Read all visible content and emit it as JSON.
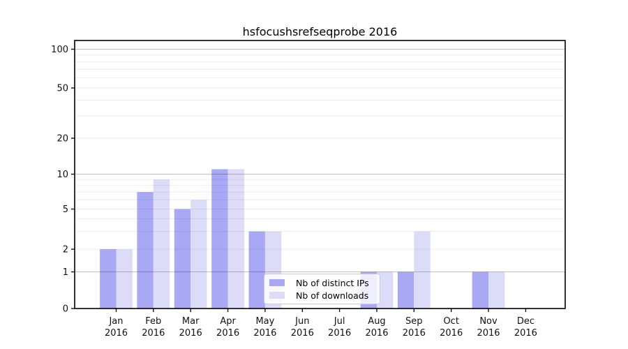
{
  "title": "hsfocushsrefseqprobe 2016",
  "legend": {
    "items": [
      {
        "label": "Nb of distinct IPs"
      },
      {
        "label": "Nb of downloads"
      }
    ]
  },
  "chart_data": {
    "type": "bar",
    "title": "hsfocushsrefseqprobe 2016",
    "categories": [
      "Jan",
      "Feb",
      "Mar",
      "Apr",
      "May",
      "Jun",
      "Jul",
      "Aug",
      "Sep",
      "Oct",
      "Nov",
      "Dec"
    ],
    "year": "2016",
    "series": [
      {
        "name": "Nb of distinct IPs",
        "color": "#a8a8f5",
        "values": [
          2,
          7,
          5,
          11,
          3,
          0,
          0,
          1,
          1,
          0,
          1,
          0
        ]
      },
      {
        "name": "Nb of downloads",
        "color": "#dcdcf8",
        "values": [
          2,
          9,
          6,
          11,
          3,
          0,
          0,
          1,
          3,
          0,
          1,
          0
        ]
      }
    ],
    "xlabel": "",
    "ylabel": "",
    "yscale": "log above 1, linear 0-1",
    "yticks": [
      0,
      1,
      2,
      5,
      10,
      20,
      50,
      100
    ],
    "major_gridlines": [
      1,
      10,
      100
    ],
    "minor_gridlines": [
      2,
      3,
      4,
      5,
      6,
      7,
      8,
      9,
      20,
      30,
      40,
      50,
      60,
      70,
      80,
      90
    ],
    "ylim": [
      0,
      115
    ],
    "grid": true,
    "legend_position": "lower center",
    "colors": {
      "major_grid": "rgba(0,0,0,0.24)",
      "minor_grid": "rgba(0,0,0,0.07)",
      "axis": "#000000",
      "text": "#111111"
    }
  }
}
